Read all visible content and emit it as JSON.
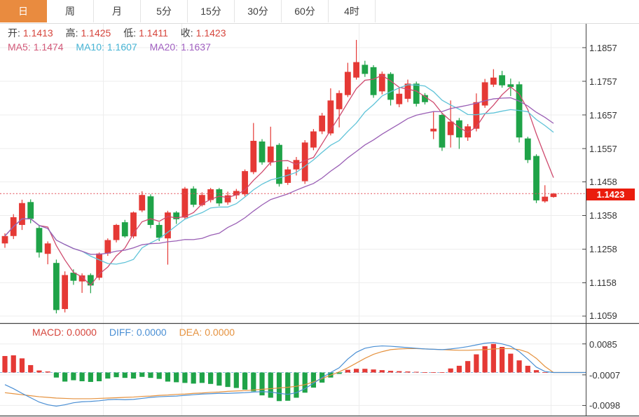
{
  "toolbar": {
    "tabs": [
      {
        "label": "日",
        "active": true
      },
      {
        "label": "周",
        "active": false
      },
      {
        "label": "月",
        "active": false
      },
      {
        "label": "5分",
        "active": false
      },
      {
        "label": "15分",
        "active": false
      },
      {
        "label": "30分",
        "active": false
      },
      {
        "label": "60分",
        "active": false
      },
      {
        "label": "4时",
        "active": false
      }
    ]
  },
  "quote_bar": {
    "items": [
      {
        "label": "开:",
        "value": "1.1413"
      },
      {
        "label": "高:",
        "value": "1.1425"
      },
      {
        "label": "低:",
        "value": "1.1411"
      },
      {
        "label": "收:",
        "value": "1.1423"
      }
    ]
  },
  "ma_bar": {
    "items": [
      {
        "label": "MA5:",
        "value": "1.1474"
      },
      {
        "label": "MA10:",
        "value": "1.1607"
      },
      {
        "label": "MA20:",
        "value": "1.1637"
      }
    ]
  },
  "macd_bar": {
    "items": [
      {
        "label": "MACD:",
        "value": "0.0000"
      },
      {
        "label": "DIFF:",
        "value": "0.0000"
      },
      {
        "label": "DEA:",
        "value": "0.0000"
      }
    ]
  },
  "price_axis": {
    "ticks": [
      "1.1857",
      "1.1757",
      "1.1657",
      "1.1557",
      "1.1458",
      "1.1358",
      "1.1258",
      "1.1158",
      "1.1059"
    ],
    "last_price_tag": "1.1423"
  },
  "macd_axis": {
    "ticks": [
      "0.0085",
      "-0.0007",
      "-0.0098"
    ]
  },
  "colors": {
    "up": "#e53935",
    "down": "#1fa348",
    "ma5_line": "#cf4a6e",
    "ma10_line": "#5fc3d8",
    "ma20_line": "#9a5fb5",
    "diff_line": "#4a8fd4",
    "dea_line": "#e5923f",
    "zero_dash": "#8ab8e0",
    "dotted_price_line": "#e24c55",
    "accent_orange": "#e98b3f",
    "tag_red": "#ea1c0d",
    "grid": "#ededed",
    "frame": "#444444"
  },
  "chart_data": {
    "type": "candlestick",
    "title": "",
    "legend_position": "top-left-overlay",
    "panels": [
      {
        "name": "price",
        "y_ticks": [
          1.1857,
          1.1757,
          1.1657,
          1.1557,
          1.1458,
          1.1358,
          1.1258,
          1.1158,
          1.1059
        ],
        "last_price": 1.1423,
        "ma_periods": [
          5,
          10,
          20
        ],
        "candles": [
          [
            1.1275,
            1.1305,
            1.1262,
            1.1297
          ],
          [
            1.1297,
            1.1362,
            1.1288,
            1.1353
          ],
          [
            1.133,
            1.1405,
            1.1315,
            1.1395
          ],
          [
            1.1398,
            1.1406,
            1.1335,
            1.1348
          ],
          [
            1.1321,
            1.133,
            1.1233,
            1.1248
          ],
          [
            1.1244,
            1.1281,
            1.1213,
            1.1275
          ],
          [
            1.1217,
            1.1227,
            1.1067,
            1.1077
          ],
          [
            1.108,
            1.1192,
            1.107,
            1.1181
          ],
          [
            1.1188,
            1.1198,
            1.1152,
            1.1164
          ],
          [
            1.1162,
            1.1186,
            1.1128,
            1.118
          ],
          [
            1.1181,
            1.1186,
            1.1127,
            1.115
          ],
          [
            1.1173,
            1.1248,
            1.1166,
            1.1245
          ],
          [
            1.1245,
            1.129,
            1.1238,
            1.1285
          ],
          [
            1.1285,
            1.1333,
            1.1278,
            1.133
          ],
          [
            1.1338,
            1.1345,
            1.1292,
            1.1296
          ],
          [
            1.1296,
            1.137,
            1.129,
            1.1367
          ],
          [
            1.1373,
            1.143,
            1.1368,
            1.1419
          ],
          [
            1.1415,
            1.1421,
            1.132,
            1.133
          ],
          [
            1.133,
            1.1338,
            1.1282,
            1.1292
          ],
          [
            1.129,
            1.1372,
            1.1212,
            1.1367
          ],
          [
            1.1367,
            1.1371,
            1.1333,
            1.1347
          ],
          [
            1.1352,
            1.1443,
            1.1347,
            1.1438
          ],
          [
            1.1438,
            1.1445,
            1.1383,
            1.139
          ],
          [
            1.1389,
            1.1427,
            1.1385,
            1.1419
          ],
          [
            1.1404,
            1.144,
            1.1397,
            1.1436
          ],
          [
            1.1436,
            1.144,
            1.1386,
            1.1394
          ],
          [
            1.1397,
            1.1429,
            1.139,
            1.1418
          ],
          [
            1.1418,
            1.1437,
            1.1407,
            1.1431
          ],
          [
            1.1421,
            1.1495,
            1.1415,
            1.149
          ],
          [
            1.1487,
            1.1633,
            1.1481,
            1.158
          ],
          [
            1.1578,
            1.1585,
            1.1509,
            1.1516
          ],
          [
            1.1516,
            1.1622,
            1.1506,
            1.1563
          ],
          [
            1.1568,
            1.1573,
            1.1444,
            1.1452
          ],
          [
            1.1455,
            1.1503,
            1.1449,
            1.1495
          ],
          [
            1.1495,
            1.1532,
            1.1477,
            1.1523
          ],
          [
            1.146,
            1.1582,
            1.1452,
            1.1575
          ],
          [
            1.156,
            1.1615,
            1.1552,
            1.1608
          ],
          [
            1.1608,
            1.1663,
            1.16,
            1.1655
          ],
          [
            1.1602,
            1.1736,
            1.1596,
            1.17
          ],
          [
            1.1674,
            1.173,
            1.162,
            1.1722
          ],
          [
            1.1716,
            1.1812,
            1.171,
            1.1785
          ],
          [
            1.1768,
            1.188,
            1.1762,
            1.1814
          ],
          [
            1.1806,
            1.1818,
            1.177,
            1.1779
          ],
          [
            1.1799,
            1.1805,
            1.1708,
            1.1716
          ],
          [
            1.1727,
            1.1786,
            1.1718,
            1.1779
          ],
          [
            1.1779,
            1.1784,
            1.1685,
            1.1702
          ],
          [
            1.1689,
            1.1737,
            1.168,
            1.172
          ],
          [
            1.1705,
            1.1762,
            1.1695,
            1.175
          ],
          [
            1.175,
            1.1756,
            1.1682,
            1.169
          ],
          [
            1.1716,
            1.1722,
            1.1688,
            1.1695
          ],
          [
            1.1608,
            1.1668,
            1.1585,
            1.1616
          ],
          [
            1.1657,
            1.1662,
            1.155,
            1.156
          ],
          [
            1.1597,
            1.17,
            1.156,
            1.1637
          ],
          [
            1.1641,
            1.1648,
            1.1556,
            1.159
          ],
          [
            1.159,
            1.163,
            1.158,
            1.1623
          ],
          [
            1.1616,
            1.1721,
            1.1608,
            1.1695
          ],
          [
            1.1685,
            1.1764,
            1.1678,
            1.1754
          ],
          [
            1.1747,
            1.1793,
            1.174,
            1.1768
          ],
          [
            1.1775,
            1.1788,
            1.1738,
            1.1745
          ],
          [
            1.1748,
            1.1765,
            1.1713,
            1.174
          ],
          [
            1.1748,
            1.1756,
            1.1575,
            1.159
          ],
          [
            1.1587,
            1.1592,
            1.1514,
            1.1523
          ],
          [
            1.1535,
            1.154,
            1.1395,
            1.1403
          ],
          [
            1.14,
            1.1448,
            1.1396,
            1.1414
          ],
          [
            1.1413,
            1.1425,
            1.1411,
            1.1423
          ]
        ]
      },
      {
        "name": "macd",
        "y_ticks": [
          0.0085,
          -0.0007,
          -0.0098
        ],
        "hist": [
          0.0049,
          0.0051,
          0.0042,
          0.0022,
          0.0006,
          0.0003,
          -0.0015,
          -0.0027,
          -0.0023,
          -0.0026,
          -0.0028,
          -0.0026,
          -0.0018,
          -0.0014,
          -0.0016,
          -0.0018,
          -0.0013,
          -0.0016,
          -0.0019,
          -0.0027,
          -0.0029,
          -0.0031,
          -0.0033,
          -0.0031,
          -0.0034,
          -0.0039,
          -0.0043,
          -0.0046,
          -0.0051,
          -0.0056,
          -0.0068,
          -0.0075,
          -0.0085,
          -0.0084,
          -0.0075,
          -0.006,
          -0.0045,
          -0.003,
          -0.0015,
          -0.0004,
          0.0008,
          0.0011,
          0.0011,
          0.0009,
          0.0007,
          0.0005,
          0.0004,
          0.0003,
          0.0002,
          0.0001,
          0.0001,
          0.0001,
          0.0012,
          0.002,
          0.0034,
          0.0054,
          0.0078,
          0.0085,
          0.0076,
          0.0056,
          0.0036,
          0.002,
          0.0007,
          0.0001,
          0.0
        ],
        "diff": [
          -0.0036,
          -0.0048,
          -0.0062,
          -0.0075,
          -0.0088,
          -0.0096,
          -0.01,
          -0.0096,
          -0.009,
          -0.0087,
          -0.0086,
          -0.0084,
          -0.0081,
          -0.008,
          -0.0081,
          -0.008,
          -0.0077,
          -0.0074,
          -0.0072,
          -0.0071,
          -0.007,
          -0.0068,
          -0.0066,
          -0.0064,
          -0.0063,
          -0.0062,
          -0.0062,
          -0.0061,
          -0.006,
          -0.0058,
          -0.0057,
          -0.0058,
          -0.0062,
          -0.0065,
          -0.006,
          -0.0048,
          -0.0032,
          -0.0015,
          0.0,
          0.0014,
          0.004,
          0.006,
          0.0072,
          0.0077,
          0.0079,
          0.0078,
          0.0076,
          0.0074,
          0.0072,
          0.007,
          0.0069,
          0.0068,
          0.007,
          0.0073,
          0.0077,
          0.0082,
          0.0087,
          0.0089,
          0.0085,
          0.0078,
          0.0062,
          0.004,
          0.0016,
          0.0003,
          0.0
        ],
        "dea": [
          -0.006,
          -0.0063,
          -0.0066,
          -0.0069,
          -0.0072,
          -0.0074,
          -0.0076,
          -0.0077,
          -0.0078,
          -0.0078,
          -0.0078,
          -0.0077,
          -0.0076,
          -0.0075,
          -0.0074,
          -0.0073,
          -0.0071,
          -0.007,
          -0.0068,
          -0.0067,
          -0.0065,
          -0.0064,
          -0.0062,
          -0.0061,
          -0.0059,
          -0.0058,
          -0.0056,
          -0.0055,
          -0.0054,
          -0.0052,
          -0.005,
          -0.0048,
          -0.0046,
          -0.0044,
          -0.0041,
          -0.0036,
          -0.0028,
          -0.0018,
          -0.0008,
          0.0002,
          0.0014,
          0.0028,
          0.0042,
          0.0054,
          0.0062,
          0.0068,
          0.007,
          0.0071,
          0.0071,
          0.007,
          0.0069,
          0.0068,
          0.0067,
          0.0066,
          0.0066,
          0.0067,
          0.0068,
          0.007,
          0.0071,
          0.0071,
          0.0068,
          0.006,
          0.0042,
          0.0018,
          0.0
        ]
      }
    ]
  }
}
